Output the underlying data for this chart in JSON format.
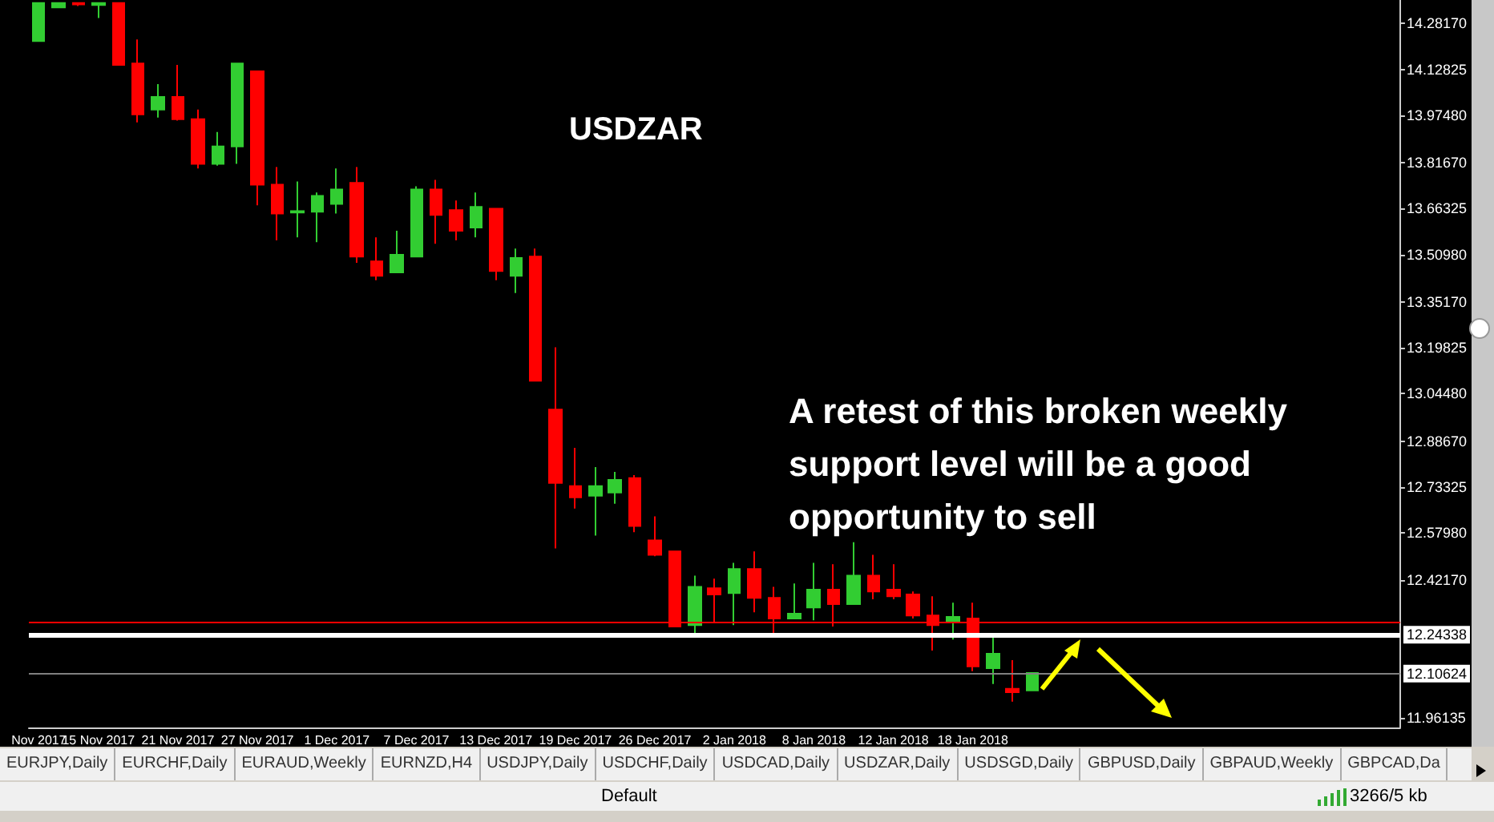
{
  "chart_data": {
    "type": "candlestick",
    "title": "USDZAR",
    "categories": [
      "Nov 2017",
      null,
      null,
      "15 Nov 2017",
      null,
      null,
      null,
      "21 Nov 2017",
      null,
      null,
      null,
      "27 Nov 2017",
      null,
      null,
      null,
      "1 Dec 2017",
      null,
      null,
      null,
      "7 Dec 2017",
      null,
      null,
      null,
      "13 Dec 2017",
      null,
      null,
      null,
      "19 Dec 2017",
      null,
      null,
      null,
      "26 Dec 2017",
      null,
      null,
      null,
      "2 Jan 2018",
      null,
      null,
      null,
      "8 Jan 2018",
      null,
      null,
      null,
      "12 Jan 2018",
      null,
      null,
      null,
      "18 Jan 2018",
      null,
      null,
      null,
      null,
      null,
      null,
      null,
      null,
      null,
      null,
      null,
      null,
      null,
      null,
      null,
      null,
      null,
      null,
      null,
      null,
      null
    ],
    "ohlc": [
      [
        14.223,
        14.35,
        14.223,
        14.35
      ],
      [
        14.335,
        14.35,
        14.335,
        14.35
      ],
      [
        14.35,
        14.35,
        14.34,
        14.345
      ],
      [
        14.343,
        14.35,
        14.3,
        14.35
      ],
      [
        14.35,
        14.35,
        14.143,
        14.143
      ],
      [
        14.148,
        14.228,
        13.951,
        13.978
      ],
      [
        13.994,
        14.079,
        13.967,
        14.036
      ],
      [
        14.036,
        14.143,
        13.957,
        13.962
      ],
      [
        13.962,
        13.994,
        13.797,
        13.813
      ],
      [
        13.813,
        13.919,
        13.807,
        13.871
      ],
      [
        13.871,
        14.148,
        13.813,
        14.148
      ],
      [
        14.122,
        14.122,
        13.674,
        13.743
      ],
      [
        13.743,
        13.802,
        13.557,
        13.647
      ],
      [
        13.65,
        13.754,
        13.567,
        13.655
      ],
      [
        13.653,
        13.717,
        13.551,
        13.706
      ],
      [
        13.679,
        13.797,
        13.647,
        13.727
      ],
      [
        13.749,
        13.802,
        13.482,
        13.503
      ],
      [
        13.487,
        13.567,
        13.424,
        13.439
      ],
      [
        13.45,
        13.589,
        13.45,
        13.509
      ],
      [
        13.503,
        13.738,
        13.503,
        13.727
      ],
      [
        13.727,
        13.759,
        13.546,
        13.642
      ],
      [
        13.658,
        13.69,
        13.557,
        13.589
      ],
      [
        13.6,
        13.717,
        13.567,
        13.669
      ],
      [
        13.663,
        13.663,
        13.424,
        13.455
      ],
      [
        13.439,
        13.53,
        13.381,
        13.498
      ],
      [
        13.503,
        13.53,
        13.088,
        13.088
      ],
      [
        12.992,
        13.2,
        12.528,
        12.747
      ],
      [
        12.736,
        12.864,
        12.661,
        12.699
      ],
      [
        12.704,
        12.8,
        12.571,
        12.736
      ],
      [
        12.715,
        12.784,
        12.677,
        12.757
      ],
      [
        12.763,
        12.773,
        12.582,
        12.603
      ],
      [
        12.555,
        12.635,
        12.502,
        12.507
      ],
      [
        12.518,
        12.518,
        12.267,
        12.267
      ],
      [
        12.272,
        12.437,
        12.24,
        12.4
      ],
      [
        12.395,
        12.427,
        12.278,
        12.374
      ],
      [
        12.379,
        12.48,
        12.272,
        12.459
      ],
      [
        12.459,
        12.518,
        12.315,
        12.363
      ],
      [
        12.363,
        12.4,
        12.235,
        12.294
      ],
      [
        12.294,
        12.411,
        12.294,
        12.31
      ],
      [
        12.331,
        12.48,
        12.288,
        12.39
      ],
      [
        12.39,
        12.475,
        12.267,
        12.342
      ],
      [
        12.342,
        12.549,
        12.342,
        12.437
      ],
      [
        12.437,
        12.507,
        12.358,
        12.384
      ],
      [
        12.39,
        12.475,
        12.358,
        12.368
      ],
      [
        12.374,
        12.384,
        12.294,
        12.304
      ],
      [
        12.304,
        12.368,
        12.187,
        12.272
      ],
      [
        12.283,
        12.347,
        12.224,
        12.299
      ],
      [
        12.294,
        12.347,
        12.118,
        12.134
      ],
      [
        12.128,
        12.24,
        12.075,
        12.176
      ],
      [
        12.059,
        12.155,
        12.016,
        12.048
      ],
      [
        12.054,
        12.112,
        12.054,
        12.112
      ],
      null,
      null,
      null,
      null,
      null,
      null,
      null,
      null,
      null,
      null,
      null,
      null,
      null,
      null,
      null,
      null,
      null,
      null
    ],
    "colors": [
      "#32cd32",
      "#32cd32",
      "#ff0000",
      "#32cd32",
      "#ff0000",
      "#ff0000",
      "#32cd32",
      "#ff0000",
      "#ff0000",
      "#32cd32",
      "#32cd32",
      "#ff0000",
      "#ff0000",
      "#32cd32",
      "#32cd32",
      "#32cd32",
      "#ff0000",
      "#ff0000",
      "#32cd32",
      "#32cd32",
      "#ff0000",
      "#ff0000",
      "#32cd32",
      "#ff0000",
      "#32cd32",
      "#ff0000",
      "#ff0000",
      "#ff0000",
      "#32cd32",
      "#32cd32",
      "#ff0000",
      "#ff0000",
      "#ff0000",
      "#32cd32",
      "#ff0000",
      "#32cd32",
      "#ff0000",
      "#ff0000",
      "#32cd32",
      "#32cd32",
      "#ff0000",
      "#32cd32",
      "#ff0000",
      "#ff0000",
      "#ff0000",
      "#ff0000",
      "#32cd32",
      "#ff0000",
      "#32cd32",
      "#ff0000",
      "#32cd32",
      null,
      null,
      null,
      null,
      null,
      null,
      null,
      null,
      null,
      null,
      null,
      null,
      null,
      null,
      null,
      null,
      null,
      null
    ],
    "ylim": [
      11.93,
      14.36
    ],
    "yticks": [
      {
        "value": 11.96135,
        "label": "11.96135"
      },
      {
        "value": 12.4217,
        "label": "12.42170"
      },
      {
        "value": 12.5798,
        "label": "12.57980"
      },
      {
        "value": 12.73325,
        "label": "12.73325"
      },
      {
        "value": 12.8867,
        "label": "12.88670"
      },
      {
        "value": 13.0448,
        "label": "13.04480"
      },
      {
        "value": 13.19825,
        "label": "13.19825"
      },
      {
        "value": 13.3517,
        "label": "13.35170"
      },
      {
        "value": 13.5098,
        "label": "13.50980"
      },
      {
        "value": 13.66325,
        "label": "13.66325"
      },
      {
        "value": 13.8167,
        "label": "13.81670"
      },
      {
        "value": 13.9748,
        "label": "13.97480"
      },
      {
        "value": 14.12825,
        "label": "14.12825"
      },
      {
        "value": 14.2817,
        "label": "14.28170"
      }
    ],
    "ref_lines": [
      {
        "axis": "y",
        "value": 12.278,
        "label": null,
        "color": "#ff0000",
        "line_style": "solid"
      },
      {
        "axis": "y",
        "value": 12.24338,
        "label": "12.24338",
        "color": "#ffffff",
        "line_style": "solid"
      },
      {
        "axis": "y",
        "value": 12.10624,
        "label": "12.10624",
        "color": "#808080",
        "line_style": "solid"
      }
    ],
    "annotations": [
      "A retest of this broken weekly support level will be a good opportunity to sell",
      "EURJPY,Daily",
      "EURCHF,Daily",
      "EURAUD,Weekly",
      "EURNZD,H4",
      "USDJPY,Daily",
      "USDCHF,Daily",
      "USDCAD,Daily",
      "USDZAR,Daily",
      "USDSGD,Daily",
      "GBPUSD,Daily",
      "GBPAUD,Weekly",
      "GBPCAD,Da",
      "Default",
      "3266/5 kb"
    ]
  }
}
